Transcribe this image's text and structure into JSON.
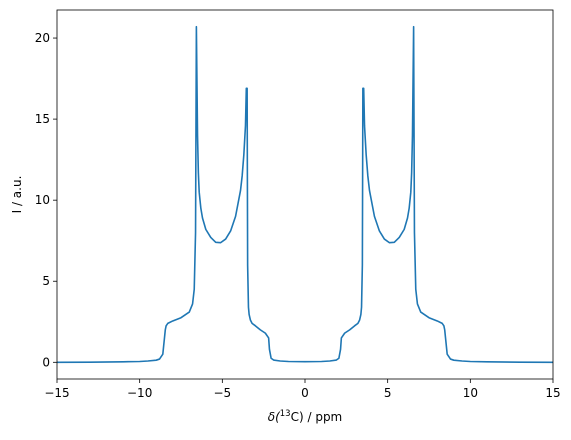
{
  "chart_data": {
    "type": "line",
    "xlabel_prefix": "δ(",
    "xlabel_superscript": "13",
    "xlabel_suffix": "C) / ppm",
    "ylabel": "I / a.u.",
    "xlim": [
      -15,
      15
    ],
    "ylim": [
      -1.03,
      21.73
    ],
    "grid": false,
    "x_ticks": [
      -15,
      -10,
      -5,
      0,
      5,
      10,
      15
    ],
    "x_tick_labels": [
      "−15",
      "−10",
      "−5",
      "0",
      "5",
      "10",
      "15"
    ],
    "y_ticks": [
      0,
      5,
      10,
      15,
      20
    ],
    "y_tick_labels": [
      "0",
      "5",
      "10",
      "15",
      "20"
    ],
    "series": [
      {
        "color": "#1f77b4",
        "x": [
          -15,
          -13,
          -11,
          -10,
          -9.5,
          -9,
          -8.8,
          -8.6,
          -8.5,
          -8.45,
          -8.4,
          -8.3,
          -8.0,
          -7.5,
          -7.0,
          -6.8,
          -6.7,
          -6.62,
          -6.57,
          -6.5,
          -6.45,
          -6.4,
          -6.3,
          -6.2,
          -6.0,
          -5.7,
          -5.4,
          -5.1,
          -4.8,
          -4.5,
          -4.2,
          -3.9,
          -3.8,
          -3.7,
          -3.6,
          -3.55,
          -3.5,
          -3.47,
          -3.42,
          -3.38,
          -3.3,
          -3.2,
          -3.0,
          -2.7,
          -2.4,
          -2.2,
          -2.15,
          -2.05,
          -1.9,
          -1.5,
          -1.0,
          0,
          1.0,
          1.5,
          1.9,
          2.05,
          2.15,
          2.2,
          2.4,
          2.7,
          3.0,
          3.2,
          3.3,
          3.38,
          3.42,
          3.47,
          3.5,
          3.55,
          3.6,
          3.7,
          3.8,
          3.9,
          4.2,
          4.5,
          4.8,
          5.1,
          5.4,
          5.7,
          6.0,
          6.2,
          6.3,
          6.4,
          6.45,
          6.5,
          6.57,
          6.62,
          6.7,
          6.8,
          7.0,
          7.5,
          8.0,
          8.3,
          8.4,
          8.45,
          8.5,
          8.6,
          8.8,
          9.0,
          9.5,
          10,
          11,
          13,
          15
        ],
        "y": [
          0.0,
          0.01,
          0.03,
          0.05,
          0.08,
          0.13,
          0.2,
          0.5,
          1.5,
          2.0,
          2.25,
          2.4,
          2.55,
          2.75,
          3.1,
          3.6,
          4.5,
          8.0,
          20.7,
          14.0,
          11.7,
          10.5,
          9.5,
          8.9,
          8.2,
          7.7,
          7.4,
          7.38,
          7.6,
          8.1,
          9.0,
          10.6,
          11.5,
          12.8,
          14.6,
          16.9,
          16.9,
          6.0,
          3.4,
          2.95,
          2.6,
          2.4,
          2.25,
          2.0,
          1.8,
          1.5,
          0.8,
          0.25,
          0.14,
          0.08,
          0.05,
          0.04,
          0.05,
          0.08,
          0.14,
          0.25,
          0.8,
          1.5,
          1.8,
          2.0,
          2.25,
          2.4,
          2.6,
          2.95,
          3.4,
          6.0,
          16.9,
          16.9,
          14.6,
          12.8,
          11.5,
          10.6,
          9.0,
          8.1,
          7.6,
          7.38,
          7.4,
          7.7,
          8.2,
          8.9,
          9.5,
          10.5,
          11.7,
          14.0,
          20.7,
          8.0,
          4.5,
          3.6,
          3.1,
          2.75,
          2.55,
          2.4,
          2.25,
          2.0,
          1.5,
          0.5,
          0.2,
          0.13,
          0.08,
          0.05,
          0.03,
          0.01,
          0.0
        ]
      }
    ]
  }
}
